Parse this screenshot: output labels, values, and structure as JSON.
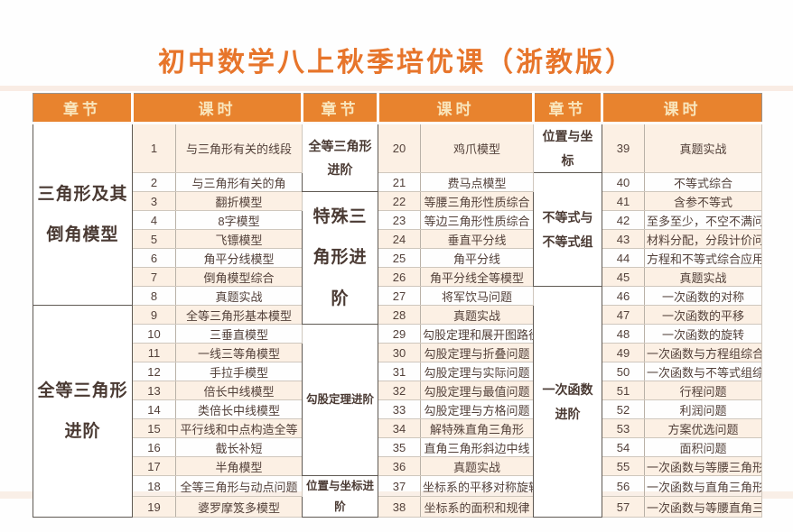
{
  "title": "初中数学八上秋季培优课（浙教版）",
  "colors": {
    "accent": "#e8832e",
    "header_text": "#f9e6bd",
    "title_color": "#e7752b",
    "stripe": "#fcf0e4",
    "text": "#53413a"
  },
  "table": {
    "header": [
      "章节",
      "课时",
      "章节",
      "课时",
      "章节",
      "课时"
    ],
    "groups": [
      {
        "chapters": [
          {
            "name": "三角形及其倒角模型",
            "start": 1,
            "end": 8,
            "emphasis": "large"
          },
          {
            "name": "全等三角形进阶",
            "start": 9,
            "end": 19,
            "emphasis": "large"
          }
        ],
        "lessons": [
          {
            "num": "1",
            "name": "与三角形有关的线段"
          },
          {
            "num": "2",
            "name": "与三角形有关的角"
          },
          {
            "num": "3",
            "name": "翻折模型"
          },
          {
            "num": "4",
            "name": "8字模型"
          },
          {
            "num": "5",
            "name": "飞镖模型"
          },
          {
            "num": "6",
            "name": "角平分线模型"
          },
          {
            "num": "7",
            "name": "倒角模型综合"
          },
          {
            "num": "8",
            "name": "真题实战"
          },
          {
            "num": "9",
            "name": "全等三角形基本模型"
          },
          {
            "num": "10",
            "name": "三垂直模型"
          },
          {
            "num": "11",
            "name": "一线三等角模型"
          },
          {
            "num": "12",
            "name": "手拉手模型"
          },
          {
            "num": "13",
            "name": "倍长中线模型"
          },
          {
            "num": "14",
            "name": "类倍长中线模型"
          },
          {
            "num": "15",
            "name": "平行线和中点构造全等"
          },
          {
            "num": "16",
            "name": "截长补短"
          },
          {
            "num": "17",
            "name": "半角模型"
          },
          {
            "num": "18",
            "name": "全等三角形与动点问题"
          },
          {
            "num": "19",
            "name": "婆罗摩笈多模型"
          }
        ]
      },
      {
        "chapters": [
          {
            "name": "全等三角形进阶",
            "start": 20,
            "end": 21,
            "emphasis": "medium"
          },
          {
            "name": "特殊三角形进阶",
            "start": 22,
            "end": 28,
            "emphasis": "large"
          },
          {
            "name": "勾股定理进阶",
            "start": 29,
            "end": 36,
            "emphasis": "small"
          },
          {
            "name": "位置与坐标进阶",
            "start": 37,
            "end": 38,
            "emphasis": "small"
          }
        ],
        "lessons": [
          {
            "num": "20",
            "name": "鸡爪模型"
          },
          {
            "num": "21",
            "name": "费马点模型"
          },
          {
            "num": "22",
            "name": "等腰三角形性质综合"
          },
          {
            "num": "23",
            "name": "等边三角形性质综合"
          },
          {
            "num": "24",
            "name": "垂直平分线"
          },
          {
            "num": "25",
            "name": "角平分线"
          },
          {
            "num": "26",
            "name": "角平分线全等模型"
          },
          {
            "num": "27",
            "name": "将军饮马问题"
          },
          {
            "num": "28",
            "name": "真题实战"
          },
          {
            "num": "29",
            "name": "勾股定理和展开图路径"
          },
          {
            "num": "30",
            "name": "勾股定理与折叠问题"
          },
          {
            "num": "31",
            "name": "勾股定理与实际问题"
          },
          {
            "num": "32",
            "name": "勾股定理与最值问题"
          },
          {
            "num": "33",
            "name": "勾股定理与方格问题"
          },
          {
            "num": "34",
            "name": "解特殊直角三角形"
          },
          {
            "num": "35",
            "name": "直角三角形斜边中线"
          },
          {
            "num": "36",
            "name": "真题实战"
          },
          {
            "num": "37",
            "name": "坐标系的平移对称旋转"
          },
          {
            "num": "38",
            "name": "坐标系的面积和规律"
          }
        ]
      },
      {
        "chapters": [
          {
            "name": "位置与坐标",
            "start": 39,
            "end": 39,
            "emphasis": "medium"
          },
          {
            "name": "不等式与不等式组",
            "start": 40,
            "end": 45,
            "emphasis": "medium"
          },
          {
            "name": "一次函数进阶",
            "start": 46,
            "end": 57,
            "emphasis": "medium"
          }
        ],
        "lessons": [
          {
            "num": "39",
            "name": "真题实战"
          },
          {
            "num": "40",
            "name": "不等式综合"
          },
          {
            "num": "41",
            "name": "含参不等式"
          },
          {
            "num": "42",
            "name": "至多至少，不空不满问题"
          },
          {
            "num": "43",
            "name": "材料分配，分段计价问题"
          },
          {
            "num": "44",
            "name": "方程和不等式综合应用题"
          },
          {
            "num": "45",
            "name": "真题实战"
          },
          {
            "num": "46",
            "name": "一次函数的对称"
          },
          {
            "num": "47",
            "name": "一次函数的平移"
          },
          {
            "num": "48",
            "name": "一次函数的旋转"
          },
          {
            "num": "49",
            "name": "一次函数与方程组综合"
          },
          {
            "num": "50",
            "name": "一次函数与不等式组综合"
          },
          {
            "num": "51",
            "name": "行程问题"
          },
          {
            "num": "52",
            "name": "利润问题"
          },
          {
            "num": "53",
            "name": "方案优选问题"
          },
          {
            "num": "54",
            "name": "面积问题"
          },
          {
            "num": "55",
            "name": "一次函数与等腰三角形"
          },
          {
            "num": "56",
            "name": "一次函数与直角三角形"
          },
          {
            "num": "57",
            "name": "一次函数与等腰直角三角形"
          }
        ]
      }
    ]
  }
}
